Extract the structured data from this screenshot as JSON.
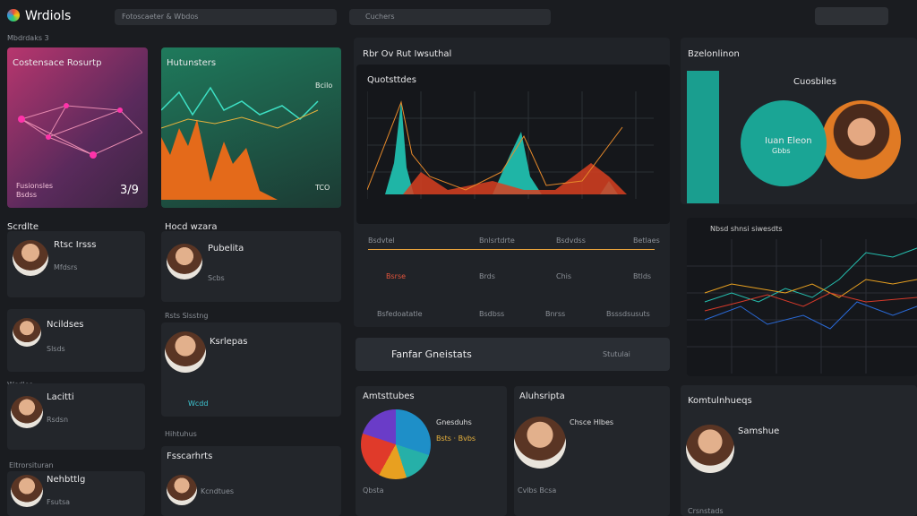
{
  "header": {
    "logo": "Wrdiols",
    "search": "Fotoscaeter & Wbdos",
    "filter": "Cuchers",
    "subtitle": "Mbdrdaks 3"
  },
  "feature": {
    "title": "Costensace Rosurtp",
    "label": "Fusionsles",
    "sub": "Bsdss",
    "value": "3/9"
  },
  "trend": {
    "title": "Hutunsters",
    "top": "Bcilo",
    "bottom": "TCO"
  },
  "people": {
    "section1": "Scrdlte",
    "section2": "Hocd wzara",
    "section3": "Rsts Slsstng",
    "section4": "Wcdles",
    "section5": "Hihtuhus",
    "section6": "Eltrorsituran",
    "items": [
      {
        "name": "Rtsc Irsss",
        "note": "Mfdsrs"
      },
      {
        "name": "Pubelita",
        "note": "Scbs"
      },
      {
        "name": "Ncildses",
        "note": "Slsds"
      },
      {
        "name": "Ksrlepas",
        "note": "Wcdd"
      },
      {
        "name": "Lacitti",
        "note": "Rsdsn"
      },
      {
        "name": "Fsscarhrts",
        "note": "Kcndtues"
      },
      {
        "name": "Nehbttlg",
        "note": "Fsutsa"
      }
    ]
  },
  "panel": {
    "title": "Rbr Ov Rut Iwsuthal",
    "chart_title": "Quotsttdes",
    "rows": [
      [
        "Bsdvtel",
        "Bnlsrtdrte",
        "Bsdvdss",
        "Betlaes"
      ],
      [
        "Bsrse",
        "Brds",
        "Chis",
        "Btlds"
      ]
    ],
    "footer": [
      "Bsfedoatatle",
      "Bsdbss",
      "Bnrss",
      "Bsssdsusuts"
    ]
  },
  "finder": {
    "title": "Fanfar Gneistats",
    "action": "Stutulai"
  },
  "pie_card": {
    "title": "Amtsttubes",
    "legend": "Gnesduhs",
    "sub": "Bsts · Bvbs",
    "foot": "Qbsta"
  },
  "profile_card": {
    "title": "Aluhsripta",
    "name": "Chsce Hlbes",
    "foot": "Cvlbs Bcsa"
  },
  "right": {
    "title": "Bzelonlinon",
    "circle_title": "Cuosbiles",
    "circle_text": "Iuan Eleon",
    "circle_sub": "Gbbs",
    "chart_label": "Nbsd shnsi siwesdts",
    "bottom_title": "Komtulnhueqs",
    "bottom_name": "Samshue",
    "bottom_foot": "Crsnstads"
  }
}
